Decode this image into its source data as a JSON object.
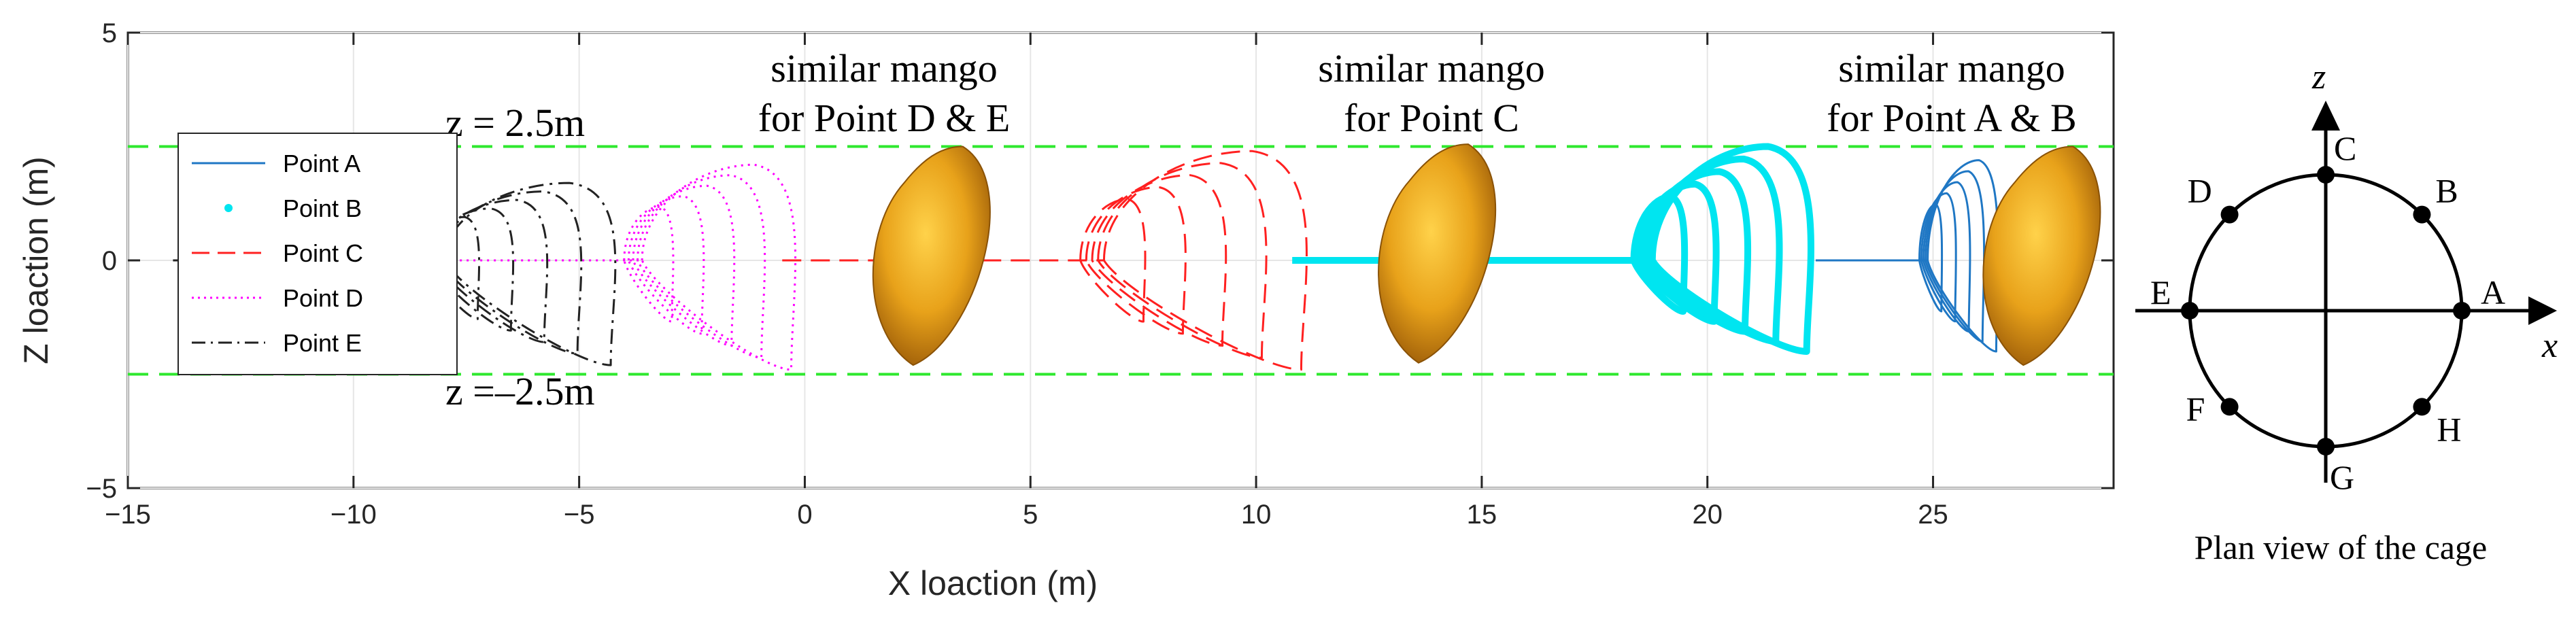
{
  "chart_data": {
    "type": "line",
    "xlabel": "X loaction (m)",
    "ylabel": "Z loaction (m)",
    "xlim": [
      -15,
      29
    ],
    "ylim": [
      -5,
      5
    ],
    "xticks": [
      "−15",
      "−10",
      "−5",
      "0",
      "5",
      "10",
      "15",
      "20",
      "25"
    ],
    "yticks": [
      "5",
      "0",
      "−5"
    ],
    "grid": true,
    "legend_placement": "left",
    "series": [
      {
        "name": "Point A",
        "style": "solid",
        "color": "#1f77c4",
        "x_range": [
          22.4,
          26.4
        ],
        "z_range": [
          -2.0,
          2.2
        ]
      },
      {
        "name": "Point B",
        "style": "dots",
        "color": "#00e5f0",
        "x_range": [
          10.8,
          22.2
        ],
        "z_range": [
          -2.0,
          2.5
        ]
      },
      {
        "name": "Point C",
        "style": "dashed",
        "color": "#ff2020",
        "x_range": [
          -0.5,
          11.0
        ],
        "z_range": [
          -2.4,
          2.4
        ]
      },
      {
        "name": "Point D",
        "style": "dotted",
        "color": "#ff00ff",
        "x_range": [
          -9.0,
          -0.3
        ],
        "z_range": [
          -2.4,
          2.1
        ]
      },
      {
        "name": "Point E",
        "style": "dashdot",
        "color": "#222222",
        "x_range": [
          -14.0,
          -4.3
        ],
        "z_range": [
          -2.3,
          1.7
        ]
      }
    ],
    "reference_lines": [
      {
        "z": 2.5,
        "color": "#2ee82e",
        "style": "dashed",
        "label": "z = 2.5m"
      },
      {
        "z": -2.5,
        "color": "#2ee82e",
        "style": "dashed",
        "label": "z =–2.5m"
      }
    ],
    "annotations": [
      {
        "line1": "similar mango",
        "line2": "for Point D & E"
      },
      {
        "line1": "similar mango",
        "line2": "for Point C"
      },
      {
        "line1": "similar mango",
        "line2": "for Point A & B"
      }
    ]
  },
  "cage": {
    "caption": "Plan view of the cage",
    "axis_x": "x",
    "axis_z": "z",
    "points": [
      "A",
      "B",
      "C",
      "D",
      "E",
      "F",
      "G",
      "H"
    ]
  },
  "colors": {
    "accent_green": "#2ee82e",
    "mango": "#e8a21a"
  }
}
